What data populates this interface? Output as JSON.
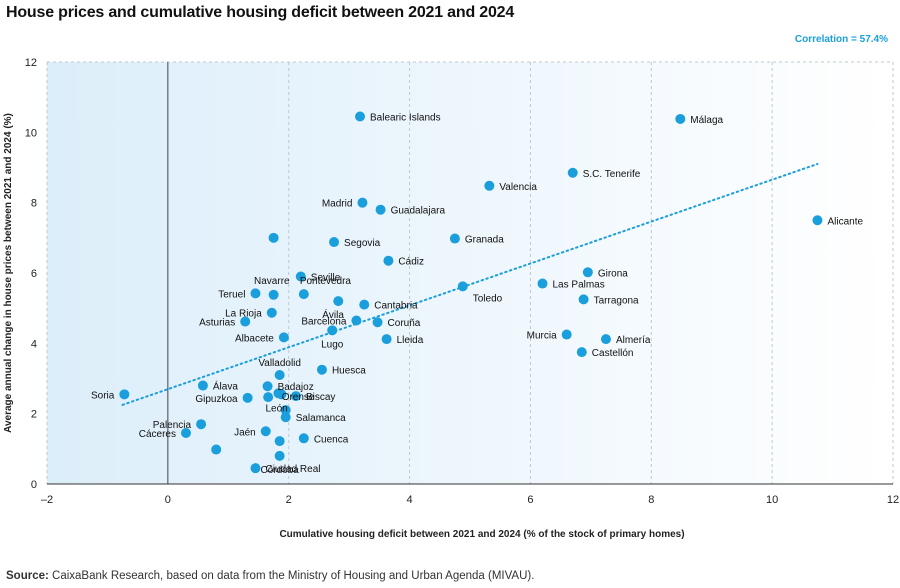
{
  "title": "House prices and cumulative housing deficit between 2021 and 2024",
  "correlation_label": "Correlation = 57.4%",
  "source_label": "Source:",
  "source_text": " CaixaBank Research, based on data from the Ministry of Housing and Urban Agenda (MIVAU).",
  "colors": {
    "point": "#1a9fdc",
    "trend": "#1a9fdc",
    "bg_left": "#dff0fb",
    "bg_right": "#ffffff",
    "grid": "#bfc8d0",
    "zero_line": "#444444"
  },
  "chart_data": {
    "type": "scatter",
    "xlabel": "Cumulative housing deficit between 2021 and 2024 (% of the stock of primary homes)",
    "ylabel": "Average annual change in house prices between 2021 and 2024 (%)",
    "xlim": [
      -2,
      12
    ],
    "ylim": [
      0,
      12
    ],
    "xticks": [
      -2,
      0,
      2,
      4,
      6,
      8,
      10,
      12
    ],
    "yticks": [
      0,
      2,
      4,
      6,
      8,
      10,
      12
    ],
    "xtick_labels": [
      "–2",
      "0",
      "2",
      "4",
      "6",
      "8",
      "10",
      "12"
    ],
    "grid": "vertical dashed",
    "trend_line": {
      "x": [
        -0.75,
        10.75
      ],
      "y": [
        2.25,
        9.1
      ]
    },
    "points": [
      {
        "label": "Balearic Islands",
        "x": 3.18,
        "y": 10.45,
        "pos": "right"
      },
      {
        "label": "Málaga",
        "x": 8.48,
        "y": 10.38,
        "pos": "right"
      },
      {
        "label": "S.C. Tenerife",
        "x": 6.7,
        "y": 8.85,
        "pos": "right"
      },
      {
        "label": "Valencia",
        "x": 5.32,
        "y": 8.48,
        "pos": "right"
      },
      {
        "label": "Madrid",
        "x": 3.22,
        "y": 8.0,
        "pos": "left"
      },
      {
        "label": "Guadalajara",
        "x": 3.52,
        "y": 7.8,
        "pos": "right"
      },
      {
        "label": "Alicante",
        "x": 10.75,
        "y": 7.5,
        "pos": "right"
      },
      {
        "label": "",
        "x": 1.75,
        "y": 7.0,
        "pos": "right"
      },
      {
        "label": "Segovia",
        "x": 2.75,
        "y": 6.88,
        "pos": "right"
      },
      {
        "label": "Granada",
        "x": 4.75,
        "y": 6.98,
        "pos": "right"
      },
      {
        "label": "Cádiz",
        "x": 3.65,
        "y": 6.35,
        "pos": "right"
      },
      {
        "label": "Girona",
        "x": 6.95,
        "y": 6.02,
        "pos": "right"
      },
      {
        "label": "Seville",
        "x": 2.2,
        "y": 5.9,
        "pos": "right"
      },
      {
        "label": "Las Palmas",
        "x": 6.2,
        "y": 5.7,
        "pos": "right"
      },
      {
        "label": "Toledo",
        "x": 4.88,
        "y": 5.62,
        "pos": "below-right"
      },
      {
        "label": "Navarre",
        "x": 1.75,
        "y": 5.38,
        "pos": "above-left"
      },
      {
        "label": "Teruel",
        "x": 1.45,
        "y": 5.42,
        "pos": "left"
      },
      {
        "label": "Pontevedra",
        "x": 2.25,
        "y": 5.4,
        "pos": "above-right"
      },
      {
        "label": "Tarragona",
        "x": 6.88,
        "y": 5.25,
        "pos": "right"
      },
      {
        "label": "Ávila",
        "x": 2.82,
        "y": 5.2,
        "pos": "below-left"
      },
      {
        "label": "Cantabria",
        "x": 3.25,
        "y": 5.1,
        "pos": "right"
      },
      {
        "label": "La Rioja",
        "x": 1.72,
        "y": 4.87,
        "pos": "left"
      },
      {
        "label": "Barcelona",
        "x": 3.12,
        "y": 4.65,
        "pos": "left"
      },
      {
        "label": "Asturias",
        "x": 1.28,
        "y": 4.62,
        "pos": "left"
      },
      {
        "label": "Coruña",
        "x": 3.47,
        "y": 4.6,
        "pos": "right"
      },
      {
        "label": "Lugo",
        "x": 2.72,
        "y": 4.37,
        "pos": "below"
      },
      {
        "label": "Murcia",
        "x": 6.6,
        "y": 4.25,
        "pos": "left"
      },
      {
        "label": "Albacete",
        "x": 1.92,
        "y": 4.17,
        "pos": "left"
      },
      {
        "label": "Lleida",
        "x": 3.62,
        "y": 4.12,
        "pos": "right"
      },
      {
        "label": "Almería",
        "x": 7.25,
        "y": 4.12,
        "pos": "right"
      },
      {
        "label": "Castellón",
        "x": 6.85,
        "y": 3.75,
        "pos": "right"
      },
      {
        "label": "Huesca",
        "x": 2.55,
        "y": 3.25,
        "pos": "right"
      },
      {
        "label": "Valladolid",
        "x": 1.85,
        "y": 3.1,
        "pos": "above"
      },
      {
        "label": "Álava",
        "x": 0.58,
        "y": 2.8,
        "pos": "right"
      },
      {
        "label": "Badajoz",
        "x": 1.65,
        "y": 2.78,
        "pos": "right"
      },
      {
        "label": "",
        "x": 1.83,
        "y": 2.58,
        "pos": "right"
      },
      {
        "label": "Biscay",
        "x": 2.12,
        "y": 2.5,
        "pos": "right"
      },
      {
        "label": "Soria",
        "x": -0.72,
        "y": 2.55,
        "pos": "left"
      },
      {
        "label": "Gipuzkoa",
        "x": 1.32,
        "y": 2.45,
        "pos": "left"
      },
      {
        "label": "",
        "x": 1.66,
        "y": 2.47,
        "pos": "right"
      },
      {
        "label": "León",
        "x": 1.88,
        "y": 2.55,
        "pos": "below-left"
      },
      {
        "label": "Orense",
        "x": 1.95,
        "y": 2.1,
        "pos": "above-right"
      },
      {
        "label": "Salamanca",
        "x": 1.95,
        "y": 1.9,
        "pos": "right"
      },
      {
        "label": "Palencia",
        "x": 0.55,
        "y": 1.7,
        "pos": "left"
      },
      {
        "label": "Jaén",
        "x": 1.62,
        "y": 1.5,
        "pos": "left"
      },
      {
        "label": "Cáceres",
        "x": 0.3,
        "y": 1.45,
        "pos": "left"
      },
      {
        "label": "Cuenca",
        "x": 2.25,
        "y": 1.3,
        "pos": "right"
      },
      {
        "label": "",
        "x": 1.85,
        "y": 1.22,
        "pos": "right"
      },
      {
        "label": "",
        "x": 0.8,
        "y": 0.98,
        "pos": "right"
      },
      {
        "label": "Córdoba",
        "x": 1.85,
        "y": 0.8,
        "pos": "below"
      },
      {
        "label": "Ciudad Real",
        "x": 1.45,
        "y": 0.45,
        "pos": "right"
      }
    ]
  }
}
